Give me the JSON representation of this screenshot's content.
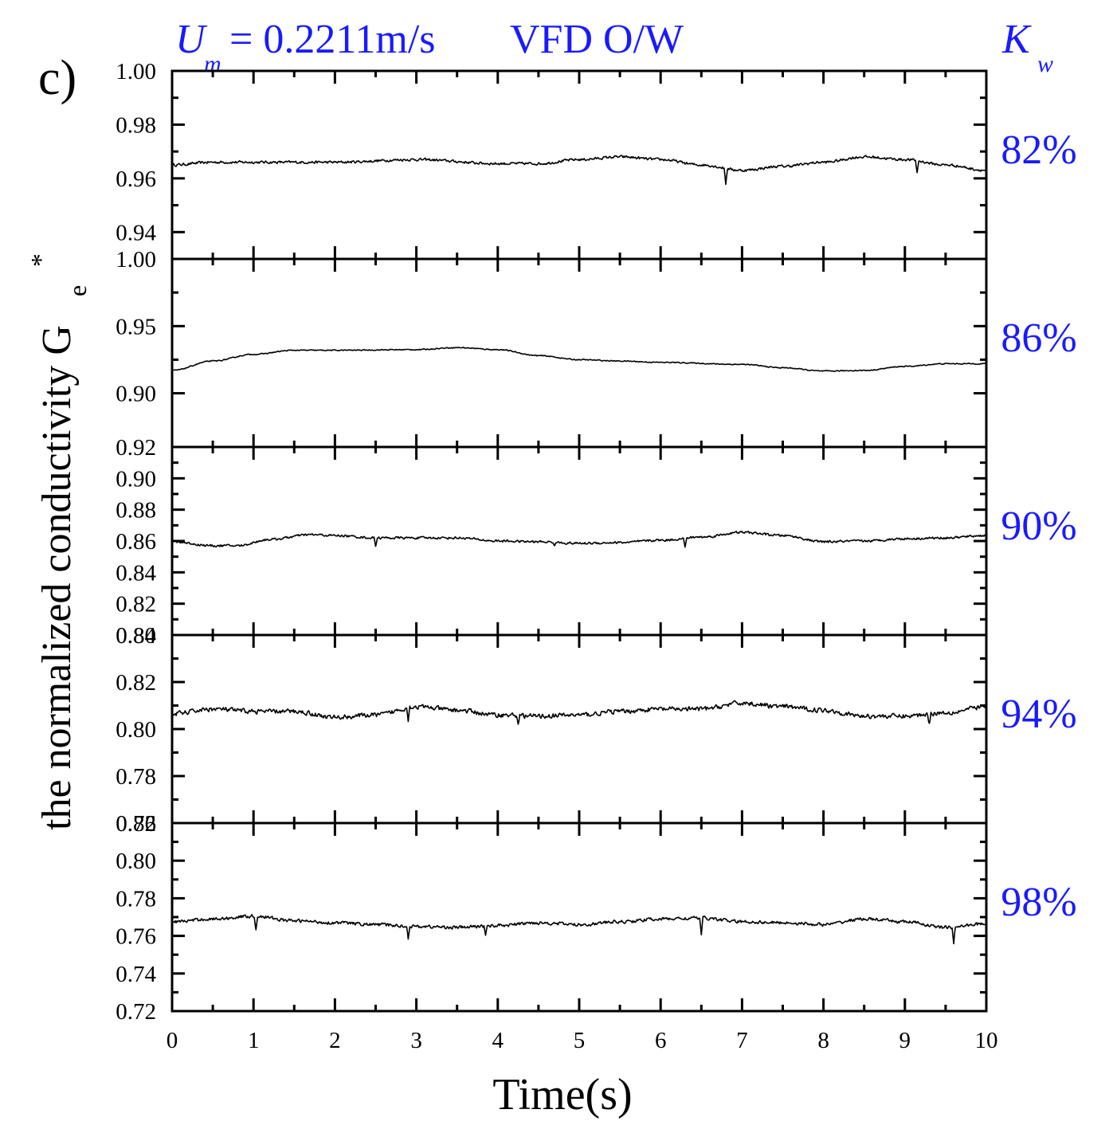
{
  "panel_label": "c)",
  "header": {
    "um_symbol": "U",
    "um_subscript": "m",
    "um_value": " = 0.2211m/s",
    "flow_type": "VFD O/W",
    "kw_symbol": "K",
    "kw_subscript": "w"
  },
  "colors": {
    "annotation": "#1a1aff",
    "trace": "#000000",
    "axis": "#000000"
  },
  "chart_data": {
    "type": "line",
    "title": "",
    "xlabel": "Time(s)",
    "ylabel_main": "the normalized conductivity G",
    "ylabel_sub": "e",
    "ylabel_sup": "*",
    "xlim": [
      0,
      10
    ],
    "xticks": [
      "0",
      "1",
      "2",
      "3",
      "4",
      "5",
      "6",
      "7",
      "8",
      "9",
      "10"
    ],
    "panels": [
      {
        "kw": "82%",
        "ylim": [
          0.93,
          1.0
        ],
        "yticks": [
          "1.00",
          "0.98",
          "0.96",
          "0.94"
        ],
        "trend": [
          [
            0,
            0.965
          ],
          [
            0.5,
            0.966
          ],
          [
            1,
            0.966
          ],
          [
            2,
            0.966
          ],
          [
            3,
            0.967
          ],
          [
            4,
            0.9655
          ],
          [
            4.5,
            0.9655
          ],
          [
            5,
            0.967
          ],
          [
            5.5,
            0.968
          ],
          [
            6,
            0.967
          ],
          [
            6.5,
            0.965
          ],
          [
            7,
            0.963
          ],
          [
            7.5,
            0.9645
          ],
          [
            8,
            0.966
          ],
          [
            8.5,
            0.968
          ],
          [
            9,
            0.967
          ],
          [
            9.5,
            0.965
          ],
          [
            10,
            0.963
          ]
        ],
        "spikes": [
          [
            6.8,
            0.958
          ],
          [
            9.15,
            0.962
          ]
        ],
        "noise": 0.0004
      },
      {
        "kw": "86%",
        "ylim": [
          0.86,
          1.0
        ],
        "yticks": [
          "1.00",
          "0.95",
          "0.90"
        ],
        "trend": [
          [
            0,
            0.917
          ],
          [
            0.5,
            0.924
          ],
          [
            1,
            0.929
          ],
          [
            1.5,
            0.932
          ],
          [
            2,
            0.932
          ],
          [
            3,
            0.9325
          ],
          [
            3.5,
            0.934
          ],
          [
            4,
            0.9325
          ],
          [
            4.5,
            0.928
          ],
          [
            5,
            0.925
          ],
          [
            5.5,
            0.924
          ],
          [
            6,
            0.923
          ],
          [
            7,
            0.9215
          ],
          [
            7.5,
            0.919
          ],
          [
            8,
            0.9165
          ],
          [
            8.5,
            0.917
          ],
          [
            9,
            0.92
          ],
          [
            9.5,
            0.922
          ],
          [
            10,
            0.922
          ]
        ],
        "spikes": [],
        "noise": 0.0003
      },
      {
        "kw": "90%",
        "ylim": [
          0.8,
          0.92
        ],
        "yticks": [
          "0.92",
          "0.90",
          "0.88",
          "0.86",
          "0.84",
          "0.82",
          "0.80"
        ],
        "trend": [
          [
            0,
            0.8595
          ],
          [
            0.5,
            0.857
          ],
          [
            0.8,
            0.857
          ],
          [
            1.2,
            0.861
          ],
          [
            1.7,
            0.864
          ],
          [
            2,
            0.8635
          ],
          [
            2.5,
            0.862
          ],
          [
            3,
            0.862
          ],
          [
            3.5,
            0.862
          ],
          [
            4,
            0.86
          ],
          [
            4.5,
            0.8595
          ],
          [
            5,
            0.8585
          ],
          [
            5.5,
            0.859
          ],
          [
            6,
            0.8605
          ],
          [
            6.5,
            0.8625
          ],
          [
            7,
            0.8655
          ],
          [
            7.5,
            0.8635
          ],
          [
            8,
            0.8595
          ],
          [
            8.5,
            0.86
          ],
          [
            9,
            0.8615
          ],
          [
            9.5,
            0.862
          ],
          [
            10,
            0.8635
          ]
        ],
        "spikes": [
          [
            2.5,
            0.857
          ],
          [
            4.7,
            0.857
          ],
          [
            6.3,
            0.8555
          ]
        ],
        "noise": 0.0006
      },
      {
        "kw": "94%",
        "ylim": [
          0.76,
          0.84
        ],
        "yticks": [
          "0.84",
          "0.82",
          "0.80",
          "0.78",
          "0.76"
        ],
        "trend": [
          [
            0,
            0.8065
          ],
          [
            0.5,
            0.8085
          ],
          [
            1,
            0.8075
          ],
          [
            1.5,
            0.8075
          ],
          [
            2,
            0.805
          ],
          [
            2.5,
            0.806
          ],
          [
            3,
            0.8095
          ],
          [
            3.5,
            0.808
          ],
          [
            4,
            0.806
          ],
          [
            4.5,
            0.8055
          ],
          [
            5,
            0.806
          ],
          [
            5.5,
            0.8075
          ],
          [
            6,
            0.8085
          ],
          [
            6.5,
            0.8085
          ],
          [
            7,
            0.811
          ],
          [
            7.5,
            0.8095
          ],
          [
            8,
            0.808
          ],
          [
            8.5,
            0.8055
          ],
          [
            9,
            0.8055
          ],
          [
            9.5,
            0.807
          ],
          [
            10,
            0.8095
          ]
        ],
        "spikes": [
          [
            2.9,
            0.804
          ],
          [
            4.25,
            0.8025
          ],
          [
            9.3,
            0.8025
          ]
        ],
        "noise": 0.0008
      },
      {
        "kw": "98%",
        "ylim": [
          0.72,
          0.82
        ],
        "yticks": [
          "0.82",
          "0.80",
          "0.78",
          "0.76",
          "0.74",
          "0.72"
        ],
        "trend": [
          [
            0,
            0.7675
          ],
          [
            0.5,
            0.769
          ],
          [
            1,
            0.7705
          ],
          [
            1.5,
            0.768
          ],
          [
            2,
            0.767
          ],
          [
            2.5,
            0.766
          ],
          [
            3,
            0.765
          ],
          [
            3.5,
            0.7645
          ],
          [
            4,
            0.7655
          ],
          [
            4.5,
            0.767
          ],
          [
            5,
            0.766
          ],
          [
            5.5,
            0.7675
          ],
          [
            6,
            0.769
          ],
          [
            6.5,
            0.7695
          ],
          [
            7,
            0.7675
          ],
          [
            7.5,
            0.767
          ],
          [
            8,
            0.766
          ],
          [
            8.5,
            0.769
          ],
          [
            9,
            0.7675
          ],
          [
            9.5,
            0.7645
          ],
          [
            10,
            0.7665
          ]
        ],
        "spikes": [
          [
            1.03,
            0.7635
          ],
          [
            2.9,
            0.759
          ],
          [
            3.85,
            0.7605
          ],
          [
            6.5,
            0.7605
          ],
          [
            9.6,
            0.7565
          ]
        ],
        "noise": 0.0007
      }
    ]
  }
}
